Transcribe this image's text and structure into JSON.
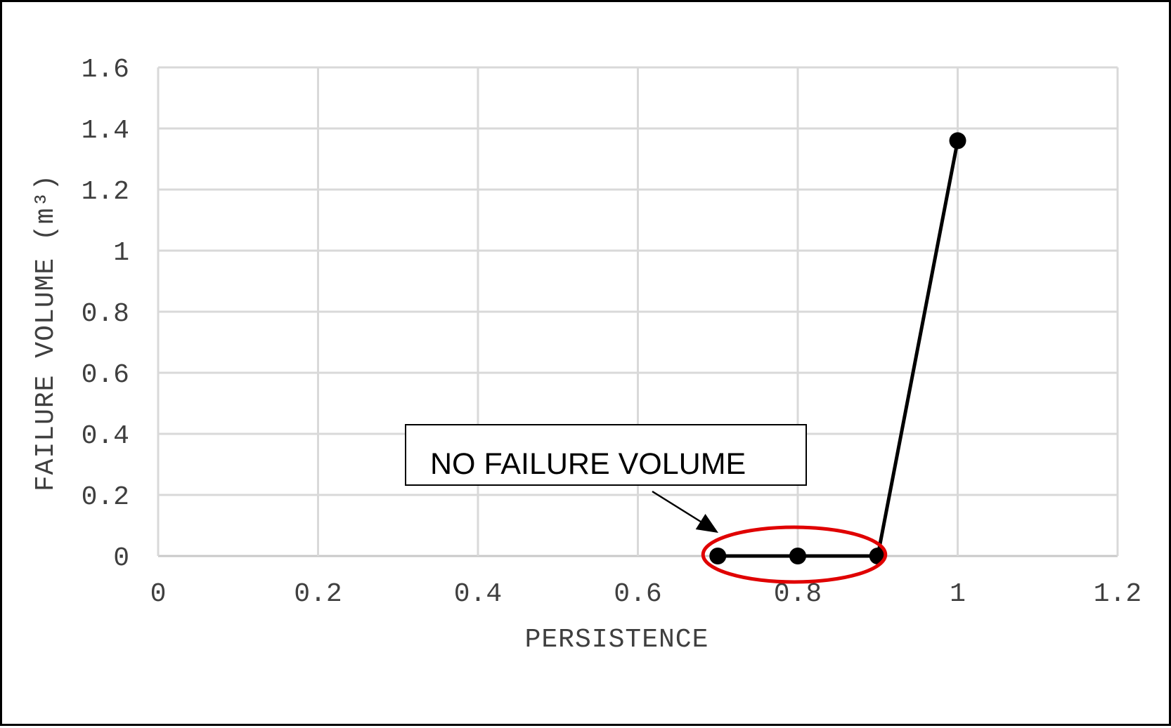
{
  "chart_data": {
    "type": "line",
    "title": "",
    "xlabel": "PERSISTENCE",
    "ylabel": "FAILURE VOLUME (m³)",
    "xlim": [
      0,
      1.2
    ],
    "ylim": [
      0,
      1.6
    ],
    "x_ticks": [
      "0",
      "0.2",
      "0.4",
      "0.6",
      "0.8",
      "1",
      "1.2"
    ],
    "y_ticks": [
      "0",
      "0.2",
      "0.4",
      "0.6",
      "0.8",
      "1",
      "1.2",
      "1.4",
      "1.6"
    ],
    "grid": true,
    "legend": "none",
    "series": [
      {
        "x": [
          0.7,
          0.8,
          0.9,
          1.0
        ],
        "y": [
          0,
          0,
          0,
          1.36
        ],
        "color": "#000000",
        "marker": "circle"
      }
    ],
    "annotation": {
      "text": "NO FAILURE VOLUME",
      "highlight_color": "#e00000",
      "highlighted_x_range": [
        0.7,
        0.9
      ]
    }
  }
}
